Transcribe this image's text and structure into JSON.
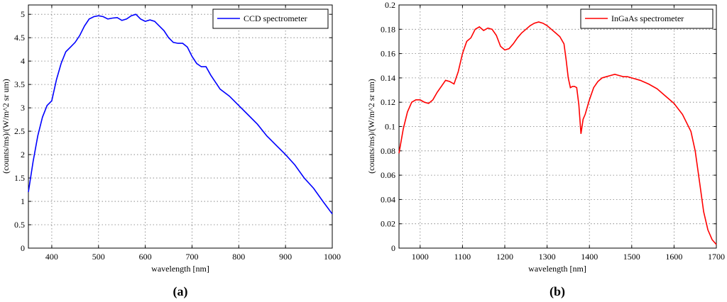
{
  "chart_data": [
    {
      "type": "line",
      "panel": "(a)",
      "xlabel": "wavelength [nm]",
      "ylabel": "(counts/ms)/(W/m^2 sr um)",
      "xlim": [
        350,
        1000
      ],
      "ylim": [
        0,
        5.2
      ],
      "xticks": [
        400,
        500,
        600,
        700,
        800,
        900,
        1000
      ],
      "yticks": [
        0,
        0.5,
        1,
        1.5,
        2,
        2.5,
        3,
        3.5,
        4,
        4.5,
        5
      ],
      "grid": true,
      "legend_position": "top-right",
      "series": [
        {
          "name": "CCD spectrometer",
          "color": "#0000ff",
          "x": [
            350,
            360,
            370,
            380,
            390,
            400,
            410,
            420,
            430,
            440,
            450,
            460,
            470,
            480,
            490,
            500,
            510,
            520,
            530,
            540,
            550,
            560,
            570,
            580,
            590,
            600,
            610,
            620,
            630,
            640,
            650,
            660,
            670,
            680,
            690,
            700,
            710,
            720,
            730,
            740,
            750,
            760,
            780,
            800,
            820,
            840,
            860,
            880,
            900,
            920,
            940,
            960,
            980,
            1000
          ],
          "y": [
            1.2,
            1.85,
            2.4,
            2.8,
            3.05,
            3.15,
            3.6,
            3.95,
            4.2,
            4.3,
            4.4,
            4.55,
            4.75,
            4.9,
            4.95,
            4.97,
            4.95,
            4.9,
            4.92,
            4.93,
            4.87,
            4.9,
            4.97,
            5.0,
            4.9,
            4.85,
            4.88,
            4.85,
            4.75,
            4.65,
            4.5,
            4.4,
            4.38,
            4.38,
            4.3,
            4.1,
            3.95,
            3.88,
            3.88,
            3.7,
            3.55,
            3.4,
            3.25,
            3.05,
            2.85,
            2.65,
            2.4,
            2.2,
            2.0,
            1.78,
            1.5,
            1.28,
            1.0,
            0.73
          ]
        }
      ]
    },
    {
      "type": "line",
      "panel": "(b)",
      "xlabel": "wavelength [nm]",
      "ylabel": "(counts/ms)/(W/m^2 sr um)",
      "xlim": [
        950,
        1700
      ],
      "ylim": [
        0,
        0.2
      ],
      "xticks": [
        1000,
        1100,
        1200,
        1300,
        1400,
        1500,
        1600,
        1700
      ],
      "yticks": [
        0,
        0.02,
        0.04,
        0.06,
        0.08,
        0.1,
        0.12,
        0.14,
        0.16,
        0.18,
        0.2
      ],
      "grid": true,
      "legend_position": "top-right",
      "series": [
        {
          "name": "InGaAs spectrometer",
          "color": "#ff0000",
          "x": [
            950,
            960,
            970,
            980,
            990,
            1000,
            1010,
            1020,
            1030,
            1040,
            1050,
            1060,
            1070,
            1080,
            1090,
            1100,
            1110,
            1120,
            1130,
            1140,
            1150,
            1160,
            1170,
            1180,
            1190,
            1200,
            1210,
            1220,
            1230,
            1240,
            1250,
            1260,
            1270,
            1280,
            1290,
            1300,
            1310,
            1320,
            1330,
            1340,
            1345,
            1350,
            1355,
            1360,
            1365,
            1370,
            1375,
            1380,
            1385,
            1390,
            1400,
            1410,
            1420,
            1430,
            1440,
            1450,
            1460,
            1470,
            1480,
            1490,
            1500,
            1520,
            1540,
            1560,
            1580,
            1600,
            1620,
            1640,
            1650,
            1660,
            1670,
            1680,
            1690,
            1700
          ],
          "y": [
            0.078,
            0.098,
            0.112,
            0.12,
            0.122,
            0.122,
            0.12,
            0.119,
            0.122,
            0.128,
            0.133,
            0.138,
            0.137,
            0.135,
            0.145,
            0.16,
            0.17,
            0.173,
            0.18,
            0.182,
            0.179,
            0.181,
            0.18,
            0.175,
            0.166,
            0.163,
            0.164,
            0.168,
            0.173,
            0.177,
            0.18,
            0.183,
            0.185,
            0.186,
            0.185,
            0.183,
            0.18,
            0.177,
            0.174,
            0.168,
            0.155,
            0.14,
            0.132,
            0.133,
            0.133,
            0.132,
            0.118,
            0.094,
            0.106,
            0.11,
            0.122,
            0.132,
            0.137,
            0.14,
            0.141,
            0.142,
            0.143,
            0.142,
            0.141,
            0.141,
            0.14,
            0.138,
            0.135,
            0.131,
            0.125,
            0.119,
            0.11,
            0.096,
            0.08,
            0.055,
            0.03,
            0.015,
            0.007,
            0.003
          ]
        }
      ]
    }
  ]
}
